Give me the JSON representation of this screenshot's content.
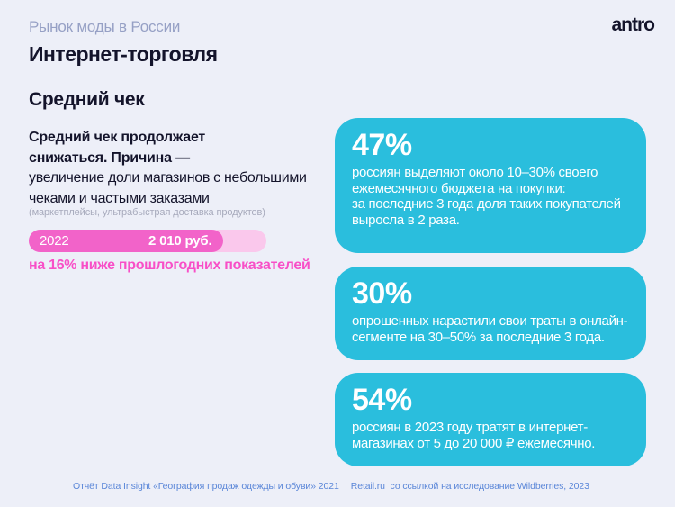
{
  "header": {
    "eyebrow": "Рынок моды в России",
    "title": "Интернет-торговля",
    "logo": "antro"
  },
  "left": {
    "section_title": "Средний чек",
    "lead_bold": "Средний чек продолжает\nснижаться. Причина —",
    "lead_regular": "увеличение доли магазинов с небольшими\nчеками и частыми заказами",
    "caption": "(маркетплейсы, ультрабыстрая доставка продуктов)",
    "bar": {
      "year": "2022",
      "value": "2 010 руб.",
      "fill_width": "82%"
    },
    "note": "на 16% ниже прошлогодних показателей"
  },
  "cards": [
    {
      "stat": "47%",
      "text": "россиян выделяют около 10–30% своего\nежемесячного бюджета на покупки:\nза последние 3 года доля таких покупателей\nвыросла в 2 раза."
    },
    {
      "stat": "30%",
      "text": "опрошенных нарастили свои траты в онлайн-\nсегменте на 30–50% за последние 3 года."
    },
    {
      "stat": "54%",
      "text": "россиян в 2023 году тратят в интернет-\nмагазинах от 5 до 20 000 ₽ ежемесячно."
    }
  ],
  "footer": {
    "source1": "Отчёт Data Insight «География продаж одежды и обуви» 2021",
    "source2": "Retail.ru  со ссылкой на исследование Wildberries, 2023"
  },
  "chart_data": {
    "type": "bar",
    "categories": [
      "2022"
    ],
    "values": [
      2010
    ],
    "value_labels": [
      "2 010 руб."
    ],
    "title": "Средний чек",
    "note": "на 16% ниже прошлогодних показателей",
    "bar_fill_fraction": 0.82
  },
  "colors": {
    "background": "#EDEFF8",
    "text_navy": "#14142B",
    "eyebrow": "#96A0C5",
    "caption_gray": "#A7AABC",
    "pink_fill": "#F263C9",
    "pink_track": "#FAC8EC",
    "pink_text": "#F84FC7",
    "cyan_card": "#2ABEDD",
    "footer_blue": "#5A86D8"
  }
}
